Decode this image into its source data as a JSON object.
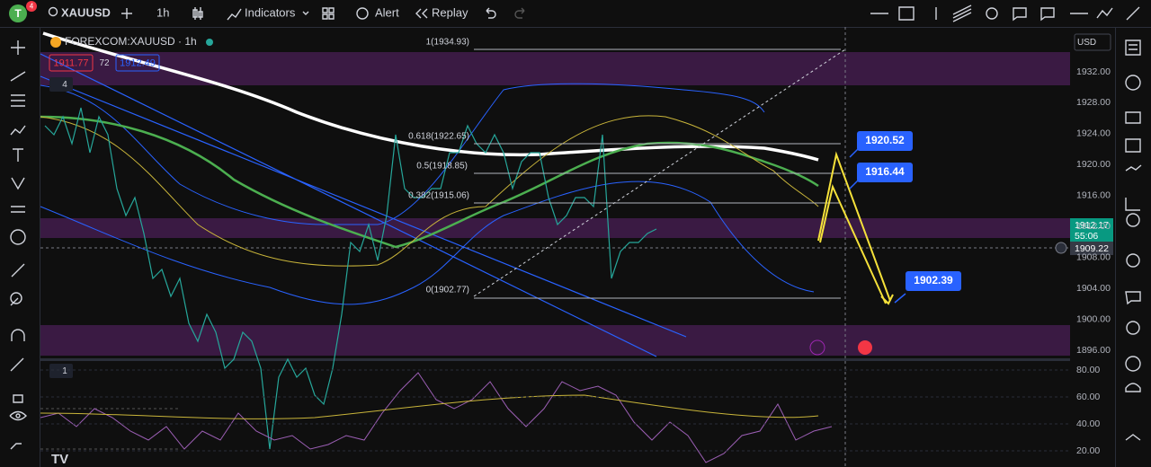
{
  "toolbar": {
    "avatar": "T",
    "badge": "4",
    "symbol": "XAUUSD",
    "interval": "1h",
    "indicators": "Indicators",
    "alert": "Alert",
    "replay": "Replay"
  },
  "legend": {
    "title": "FOREXCOM:XAUUSD · 1h",
    "bid": "1911.77",
    "spread": "72",
    "ask": "1912.49",
    "indicator_count": "4"
  },
  "price_axis": {
    "currency": "USD",
    "ticks": [
      "1932.00",
      "1928.00",
      "1924.00",
      "1920.00",
      "1916.00",
      "1912.00",
      "1908.00",
      "1904.00",
      "1900.00",
      "1896.00"
    ],
    "last_price": "1912.17",
    "countdown": "55:06",
    "crosshair_price": "1909.22"
  },
  "fibonacci": [
    "1(1934.93)",
    "0.618(1922.65)",
    "0.5(1918.85)",
    "0.382(1915.06)",
    "0(1902.77)"
  ],
  "callouts": [
    "1920.52",
    "1916.44",
    "1902.39"
  ],
  "rsi_pane": {
    "indicator_count": "1",
    "ticks": [
      "80.00",
      "60.00",
      "40.00",
      "20.00"
    ]
  }
}
